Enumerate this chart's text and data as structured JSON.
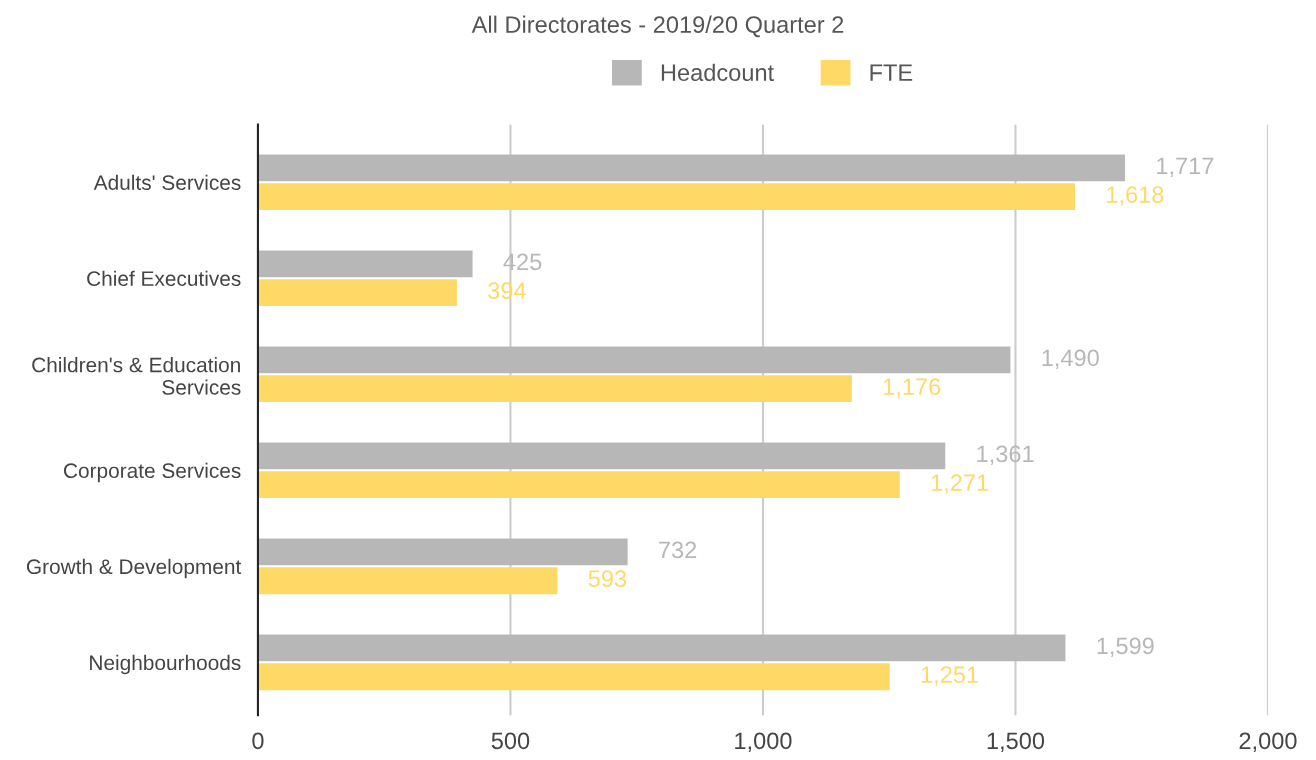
{
  "chart_data": {
    "type": "bar",
    "orientation": "horizontal",
    "title": "All Directorates - 2019/20 Quarter 2",
    "categories": [
      "Adults' Services",
      "Chief Executives",
      "Children's & Education\nServices",
      "Corporate Services",
      "Growth & Development",
      "Neighbourhoods"
    ],
    "series": [
      {
        "name": "Headcount",
        "color": "#b7b7b7",
        "values": [
          1717,
          425,
          1490,
          1361,
          732,
          1599
        ],
        "value_labels": [
          "1,717",
          "425",
          "1,490",
          "1,361",
          "732",
          "1,599"
        ]
      },
      {
        "name": "FTE",
        "color": "#ffd966",
        "values": [
          1618,
          394,
          1176,
          1271,
          593,
          1251
        ],
        "value_labels": [
          "1,618",
          "394",
          "1,176",
          "1,271",
          "593",
          "1,251"
        ]
      }
    ],
    "xlim": [
      0,
      2000
    ],
    "xticks": [
      {
        "value": 0,
        "label": "0"
      },
      {
        "value": 500,
        "label": "500"
      },
      {
        "value": 1000,
        "label": "1,000"
      },
      {
        "value": 1500,
        "label": "1,500"
      },
      {
        "value": 2000,
        "label": "2,000"
      }
    ],
    "grid": "x",
    "legend": "top"
  }
}
